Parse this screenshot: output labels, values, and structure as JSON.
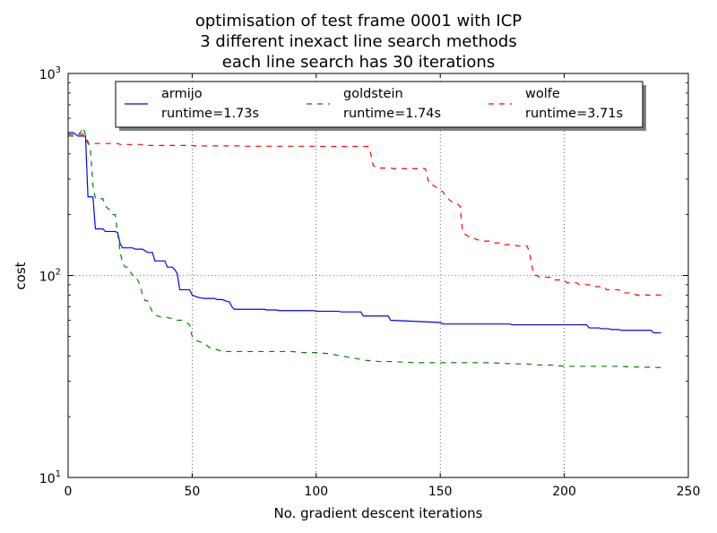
{
  "chart_data": {
    "type": "line",
    "title_lines": [
      "optimisation of test frame 0001 with ICP",
      "3 different inexact line search methods",
      "each line search has 30 iterations"
    ],
    "xlabel": "No. gradient descent iterations",
    "ylabel": "cost",
    "xlim": [
      0,
      250
    ],
    "ylim": [
      10,
      1000
    ],
    "y_scale": "log",
    "x_ticks": [
      0,
      50,
      100,
      150,
      200,
      250
    ],
    "x_tick_labels": [
      "0",
      "50",
      "100",
      "150",
      "200",
      "250"
    ],
    "y_ticks": [
      10,
      100,
      1000
    ],
    "y_tick_labels": [
      {
        "base": "10",
        "exp": "1"
      },
      {
        "base": "10",
        "exp": "2"
      },
      {
        "base": "10",
        "exp": "3"
      }
    ],
    "grid": true,
    "legend_position": "top",
    "series": [
      {
        "name": "armijo",
        "runtime_label": "runtime=1.73s",
        "color": "#0000ff",
        "dash": "solid",
        "x": [
          0,
          2,
          4,
          6,
          7,
          8,
          9,
          10,
          11,
          14,
          15,
          19,
          20,
          21,
          22,
          26,
          27,
          30,
          32,
          34,
          35,
          39,
          40,
          42,
          43,
          44,
          45,
          49,
          50,
          51,
          53,
          55,
          59,
          60,
          62,
          64,
          65,
          66,
          67,
          72,
          73,
          79,
          80,
          84,
          85,
          99,
          100,
          109,
          110,
          118,
          119,
          121,
          122,
          129,
          130,
          150,
          151,
          178,
          179,
          209,
          210,
          214,
          215,
          218,
          219,
          222,
          223,
          235,
          236,
          239
        ],
        "y": [
          510,
          510,
          490,
          490,
          490,
          245,
          245,
          245,
          170,
          170,
          165,
          165,
          163,
          143,
          137,
          137,
          135,
          135,
          130,
          130,
          118,
          118,
          110,
          110,
          107,
          102,
          85,
          85,
          80,
          79,
          77.5,
          77,
          77,
          76,
          76,
          74.5,
          74,
          70,
          68,
          68,
          68,
          68,
          67.5,
          67.5,
          67,
          67,
          66.5,
          66.5,
          66,
          66,
          63,
          63,
          63,
          63,
          60,
          58.5,
          57.5,
          57.5,
          57,
          57,
          55,
          55,
          54.5,
          54.5,
          54,
          54,
          53.5,
          53.5,
          52,
          52
        ]
      },
      {
        "name": "goldstein",
        "runtime_label": "runtime=1.74s",
        "color": "#008000",
        "dash": "dashed",
        "x": [
          0,
          3,
          4,
          5,
          6,
          7,
          8,
          9,
          10,
          11,
          14,
          15,
          17,
          18,
          19,
          20,
          21,
          22,
          23,
          24,
          26,
          27,
          28,
          29,
          30,
          31,
          32,
          33,
          34,
          35,
          36,
          38,
          40,
          42,
          44,
          46,
          48,
          49,
          50,
          51,
          53,
          55,
          57,
          59,
          60,
          62,
          63,
          64,
          65,
          66,
          68,
          70,
          75,
          80,
          85,
          90,
          95,
          100,
          105,
          110,
          115,
          120,
          125,
          130,
          140,
          150,
          160,
          170,
          180,
          185,
          190,
          195,
          200,
          210,
          220,
          230,
          239
        ],
        "y": [
          490,
          490,
          500,
          510,
          540,
          500,
          460,
          420,
          280,
          240,
          240,
          220,
          210,
          200,
          200,
          160,
          130,
          115,
          110,
          110,
          100,
          100,
          95,
          90,
          80,
          75,
          75,
          70,
          66,
          64,
          63,
          62,
          62,
          61,
          60,
          60,
          58,
          57,
          50,
          48,
          47,
          46,
          44,
          43,
          43,
          42,
          42,
          42,
          42,
          42,
          42,
          42,
          42,
          42,
          42,
          42,
          41.5,
          41.5,
          41,
          40,
          39,
          38,
          37.5,
          37.5,
          37,
          37,
          37,
          37,
          36.5,
          36.5,
          36,
          36,
          35.5,
          35.5,
          35.5,
          35.2,
          35
        ]
      },
      {
        "name": "wolfe",
        "runtime_label": "runtime=3.71s",
        "color": "#ff0000",
        "dash": "dashed",
        "x": [
          0,
          5,
          6,
          7,
          8,
          20,
          21,
          30,
          31,
          50,
          51,
          70,
          71,
          100,
          101,
          120,
          121,
          122,
          123,
          124,
          125,
          130,
          131,
          144,
          145,
          146,
          147,
          148,
          149,
          150,
          151,
          152,
          153,
          154,
          155,
          156,
          157,
          158,
          159,
          160,
          161,
          162,
          163,
          164,
          165,
          166,
          167,
          170,
          171,
          175,
          176,
          180,
          181,
          185,
          186,
          187,
          188,
          189,
          190,
          195,
          196,
          200,
          201,
          205,
          206,
          210,
          211,
          216,
          217,
          222,
          223,
          228,
          229,
          239
        ],
        "y": [
          500,
          500,
          500,
          480,
          450,
          450,
          445,
          445,
          440,
          440,
          438,
          438,
          436,
          436,
          435,
          435,
          435,
          400,
          350,
          345,
          340,
          340,
          338,
          338,
          300,
          280,
          280,
          275,
          270,
          265,
          260,
          250,
          240,
          235,
          230,
          230,
          225,
          220,
          165,
          160,
          157,
          155,
          152,
          152,
          150,
          150,
          148,
          148,
          145,
          145,
          142,
          142,
          140,
          140,
          130,
          110,
          100,
          100,
          98,
          98,
          95,
          95,
          92,
          92,
          90,
          90,
          88,
          88,
          85,
          85,
          82,
          82,
          80,
          80
        ]
      }
    ]
  }
}
